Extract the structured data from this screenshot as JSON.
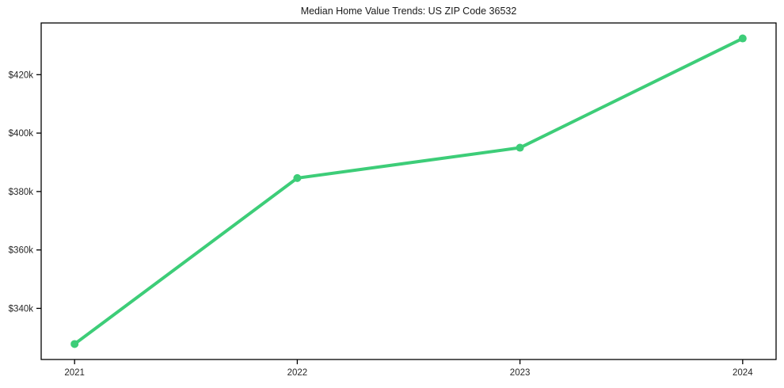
{
  "figure": {
    "background": "#ffffff"
  },
  "chart_data": {
    "type": "line",
    "title": "Median Home Value Trends: US ZIP Code 36532",
    "x": [
      2021,
      2022,
      2023,
      2024
    ],
    "values": [
      327800,
      384600,
      395000,
      432400
    ],
    "x_tick_labels": [
      "2021",
      "2022",
      "2023",
      "2024"
    ],
    "y_ticks": [
      340000,
      360000,
      380000,
      400000,
      420000
    ],
    "y_tick_labels": [
      "$340k",
      "$360k",
      "$380k",
      "$400k",
      "$420k"
    ],
    "xlabel": "",
    "ylabel": "",
    "xlim": [
      2020.85,
      2024.15
    ],
    "ylim": [
      322500,
      437700
    ],
    "grid": false,
    "legend": "none",
    "line_color": "#3dcd78",
    "marker": "circle",
    "marker_radius": 5,
    "line_width": 4,
    "axis_color": "#000000",
    "tick_label_color": "#262626"
  }
}
